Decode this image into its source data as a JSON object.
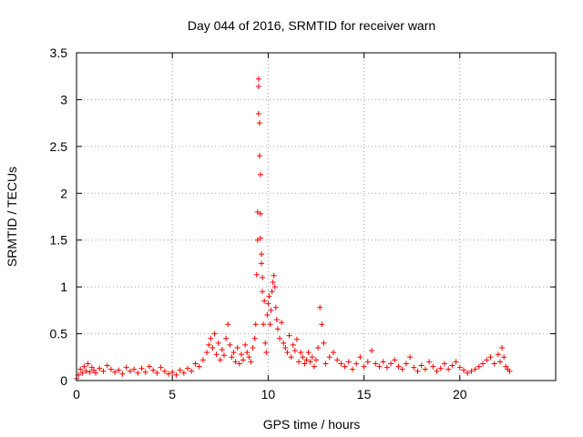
{
  "chart_data": {
    "type": "scatter",
    "title": "Day 044 of 2016, SRMTID for receiver warn",
    "xlabel": "GPS time / hours",
    "ylabel": "SRMTID / TECUs",
    "xlim": [
      0,
      25
    ],
    "ylim": [
      0,
      3.5
    ],
    "xticks": [
      0,
      5,
      10,
      15,
      20
    ],
    "xtick_labels": [
      "0",
      "5",
      "10",
      "15",
      "20"
    ],
    "yticks": [
      0,
      0.5,
      1,
      1.5,
      2,
      2.5,
      3,
      3.5
    ],
    "ytick_labels": [
      "0",
      "0.5",
      "1",
      "1.5",
      "2",
      "2.5",
      "3",
      "3.5"
    ],
    "grid": true,
    "marker": "+",
    "color": "#ff0000",
    "series": [
      {
        "name": "SRMTID",
        "x": [
          0.0,
          0.1,
          0.2,
          0.3,
          0.4,
          0.5,
          0.6,
          0.7,
          0.8,
          0.9,
          1.0,
          1.2,
          1.4,
          1.6,
          1.8,
          2.0,
          2.2,
          2.4,
          2.6,
          2.8,
          3.0,
          3.2,
          3.4,
          3.6,
          3.8,
          4.0,
          4.2,
          4.4,
          4.6,
          4.8,
          5.0,
          5.2,
          5.4,
          5.6,
          5.8,
          6.0,
          6.2,
          6.4,
          6.6,
          6.8,
          6.9,
          7.0,
          7.1,
          7.2,
          7.3,
          7.4,
          7.5,
          7.6,
          7.7,
          7.8,
          7.9,
          8.0,
          8.1,
          8.2,
          8.3,
          8.4,
          8.5,
          8.6,
          8.7,
          8.8,
          8.9,
          9.0,
          9.1,
          9.2,
          9.3,
          9.35,
          9.4,
          9.45,
          9.45,
          9.5,
          9.5,
          9.5,
          9.55,
          9.55,
          9.6,
          9.6,
          9.6,
          9.65,
          9.65,
          9.7,
          9.7,
          9.75,
          9.8,
          9.85,
          9.9,
          9.95,
          10.0,
          10.05,
          10.1,
          10.15,
          10.2,
          10.25,
          10.3,
          10.35,
          10.4,
          10.45,
          10.5,
          10.6,
          10.7,
          10.8,
          10.9,
          11.0,
          11.1,
          11.2,
          11.3,
          11.4,
          11.5,
          11.6,
          11.7,
          11.8,
          11.9,
          12.0,
          12.1,
          12.2,
          12.3,
          12.4,
          12.5,
          12.6,
          12.7,
          12.8,
          12.9,
          13.0,
          13.2,
          13.4,
          13.6,
          13.8,
          14.0,
          14.2,
          14.4,
          14.6,
          14.8,
          15.0,
          15.2,
          15.4,
          15.6,
          15.8,
          16.0,
          16.2,
          16.4,
          16.6,
          16.8,
          17.0,
          17.2,
          17.4,
          17.6,
          17.8,
          18.0,
          18.2,
          18.4,
          18.6,
          18.8,
          19.0,
          19.2,
          19.4,
          19.6,
          19.8,
          20.0,
          20.2,
          20.4,
          20.6,
          20.8,
          21.0,
          21.2,
          21.4,
          21.6,
          21.8,
          22.0,
          22.1,
          22.2,
          22.3,
          22.4,
          22.5,
          22.6
        ],
        "y": [
          0.02,
          0.06,
          0.12,
          0.08,
          0.15,
          0.1,
          0.18,
          0.09,
          0.14,
          0.11,
          0.08,
          0.13,
          0.1,
          0.16,
          0.12,
          0.09,
          0.11,
          0.07,
          0.14,
          0.1,
          0.12,
          0.08,
          0.13,
          0.09,
          0.15,
          0.11,
          0.08,
          0.14,
          0.1,
          0.07,
          0.09,
          0.06,
          0.11,
          0.08,
          0.13,
          0.1,
          0.18,
          0.15,
          0.22,
          0.3,
          0.38,
          0.45,
          0.35,
          0.5,
          0.28,
          0.4,
          0.22,
          0.33,
          0.27,
          0.45,
          0.6,
          0.38,
          0.25,
          0.3,
          0.2,
          0.35,
          0.18,
          0.28,
          0.22,
          0.38,
          0.3,
          0.25,
          0.2,
          0.35,
          0.45,
          0.6,
          1.13,
          1.5,
          1.8,
          3.14,
          3.22,
          2.85,
          2.75,
          2.4,
          2.2,
          1.78,
          1.52,
          1.35,
          1.25,
          0.95,
          1.1,
          0.6,
          0.85,
          0.4,
          0.3,
          0.7,
          0.82,
          0.9,
          0.6,
          0.75,
          0.95,
          1.05,
          1.12,
          1.0,
          0.78,
          0.65,
          0.55,
          0.45,
          0.62,
          0.4,
          0.35,
          0.3,
          0.48,
          0.25,
          0.38,
          0.32,
          0.44,
          0.2,
          0.3,
          0.25,
          0.18,
          0.22,
          0.3,
          0.2,
          0.25,
          0.15,
          0.22,
          0.35,
          0.78,
          0.6,
          0.4,
          0.18,
          0.25,
          0.3,
          0.22,
          0.18,
          0.15,
          0.2,
          0.12,
          0.18,
          0.25,
          0.15,
          0.2,
          0.32,
          0.18,
          0.15,
          0.2,
          0.14,
          0.18,
          0.22,
          0.15,
          0.12,
          0.18,
          0.25,
          0.14,
          0.1,
          0.16,
          0.12,
          0.2,
          0.15,
          0.1,
          0.13,
          0.18,
          0.12,
          0.16,
          0.2,
          0.14,
          0.11,
          0.08,
          0.1,
          0.12,
          0.15,
          0.18,
          0.22,
          0.25,
          0.18,
          0.28,
          0.2,
          0.35,
          0.25,
          0.15,
          0.12,
          0.1
        ]
      }
    ]
  }
}
